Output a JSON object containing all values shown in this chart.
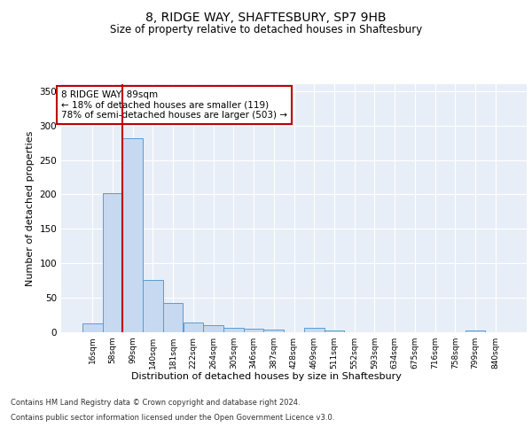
{
  "title": "8, RIDGE WAY, SHAFTESBURY, SP7 9HB",
  "subtitle": "Size of property relative to detached houses in Shaftesbury",
  "xlabel": "Distribution of detached houses by size in Shaftesbury",
  "ylabel": "Number of detached properties",
  "bar_labels": [
    "16sqm",
    "58sqm",
    "99sqm",
    "140sqm",
    "181sqm",
    "222sqm",
    "264sqm",
    "305sqm",
    "346sqm",
    "387sqm",
    "428sqm",
    "469sqm",
    "511sqm",
    "552sqm",
    "593sqm",
    "634sqm",
    "675sqm",
    "716sqm",
    "758sqm",
    "799sqm",
    "840sqm"
  ],
  "bar_values": [
    13,
    202,
    282,
    76,
    42,
    14,
    10,
    6,
    5,
    4,
    0,
    6,
    2,
    0,
    0,
    0,
    0,
    0,
    0,
    3,
    0
  ],
  "bar_color": "#c6d9f0",
  "bar_edgecolor": "#5b9bd5",
  "vline_color": "#c00000",
  "annotation_text": "8 RIDGE WAY: 89sqm\n← 18% of detached houses are smaller (119)\n78% of semi-detached houses are larger (503) →",
  "annotation_box_edgecolor": "#c00000",
  "annotation_fontsize": 7.5,
  "ylim": [
    0,
    360
  ],
  "yticks": [
    0,
    50,
    100,
    150,
    200,
    250,
    300,
    350
  ],
  "background_color": "#e8eef7",
  "grid_color": "#ffffff",
  "footer_line1": "Contains HM Land Registry data © Crown copyright and database right 2024.",
  "footer_line2": "Contains public sector information licensed under the Open Government Licence v3.0."
}
